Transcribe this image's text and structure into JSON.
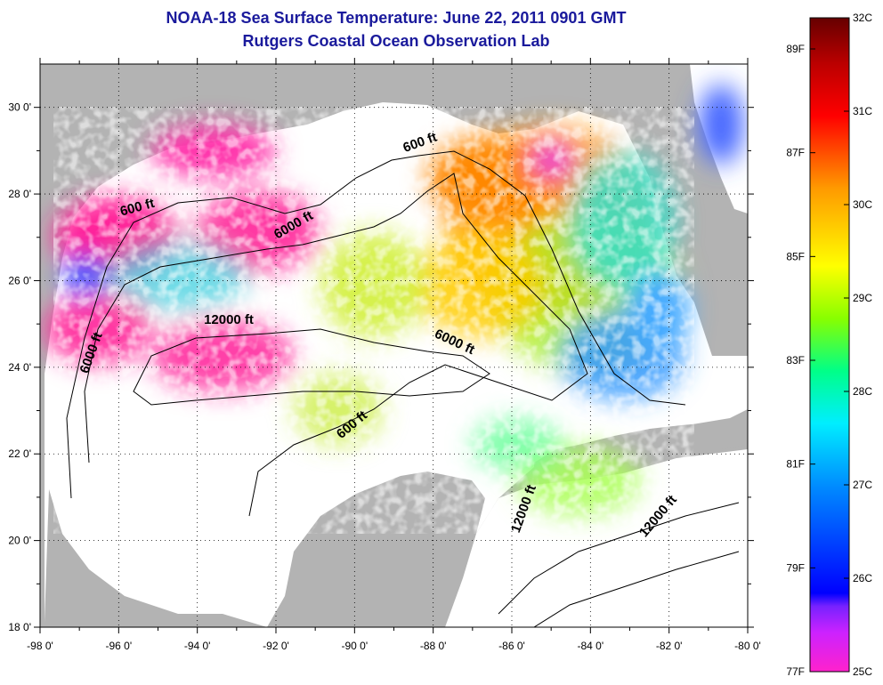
{
  "title_line1": "NOAA-18 Sea Surface Temperature:  June 22, 2011 0901 GMT",
  "title_line2": "Rutgers Coastal Ocean Observation Lab",
  "map": {
    "lon_range": [
      -98,
      -80
    ],
    "lat_range": [
      18,
      31
    ],
    "lon_ticks": [
      "-98 0'",
      "-96 0'",
      "-94 0'",
      "-92 0'",
      "-90 0'",
      "-88 0'",
      "-86 0'",
      "-84 0'",
      "-82 0'",
      "-80 0'"
    ],
    "lat_ticks": [
      "18 0'",
      "20 0'",
      "22 0'",
      "24 0'",
      "26 0'",
      "28 0'",
      "30 0'"
    ],
    "grid": "dotted",
    "land_color": "#b3b3b3",
    "no_data_color": "#ffffff",
    "contour_labels": [
      {
        "text": "600 ft",
        "lon": -88.3,
        "lat": 29.1
      },
      {
        "text": "600 ft",
        "lon": -95.5,
        "lat": 27.6
      },
      {
        "text": "6000 ft",
        "lon": -91.5,
        "lat": 27.2
      },
      {
        "text": "12000 ft",
        "lon": -93.2,
        "lat": 25.0
      },
      {
        "text": "6000 ft",
        "lon": -96.6,
        "lat": 24.3
      },
      {
        "text": "6000 ft",
        "lon": -87.5,
        "lat": 24.5
      },
      {
        "text": "600 ft",
        "lon": -90.0,
        "lat": 22.6
      },
      {
        "text": "12000 ft",
        "lon": -85.6,
        "lat": 20.7
      },
      {
        "text": "12000 ft",
        "lon": -82.2,
        "lat": 20.5
      }
    ]
  },
  "colorbar": {
    "celsius_labels": [
      "32C",
      "31C",
      "30C",
      "29C",
      "28C",
      "27C",
      "26C",
      "25C"
    ],
    "fahrenheit_labels": [
      "89F",
      "87F",
      "85F",
      "83F",
      "81F",
      "79F",
      "77F"
    ],
    "range_c": [
      25,
      32
    ],
    "range_f": [
      77,
      89.6
    ],
    "colors": [
      "#ff22cc",
      "#9922ff",
      "#0000ff",
      "#0088ff",
      "#00eeff",
      "#00ff88",
      "#88ff00",
      "#ffff00",
      "#ff9900",
      "#ff0000",
      "#aa0000",
      "#660000"
    ]
  }
}
